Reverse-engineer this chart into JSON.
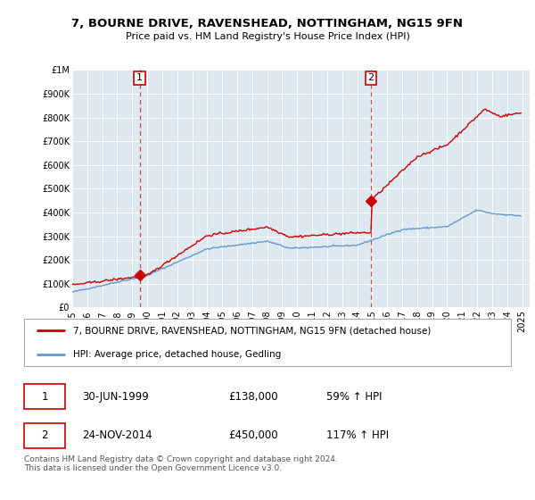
{
  "title": "7, BOURNE DRIVE, RAVENSHEAD, NOTTINGHAM, NG15 9FN",
  "subtitle": "Price paid vs. HM Land Registry's House Price Index (HPI)",
  "ylim": [
    0,
    1000000
  ],
  "yticks": [
    0,
    100000,
    200000,
    300000,
    400000,
    500000,
    600000,
    700000,
    800000,
    900000,
    1000000
  ],
  "ytick_labels": [
    "£0",
    "£100K",
    "£200K",
    "£300K",
    "£400K",
    "£500K",
    "£600K",
    "£700K",
    "£800K",
    "£900K",
    "£1M"
  ],
  "background_color": "#ffffff",
  "plot_bg_color": "#dde8f0",
  "red_line_color": "#cc0000",
  "blue_line_color": "#6699cc",
  "vline_color": "#dd4444",
  "purchase1_x": 1999.5,
  "purchase1_y": 138000,
  "purchase1_label": "30-JUN-1999",
  "purchase1_price": "£138,000",
  "purchase1_hpi": "59% ↑ HPI",
  "purchase2_x": 2014.92,
  "purchase2_y": 450000,
  "purchase2_label": "24-NOV-2014",
  "purchase2_price": "£450,000",
  "purchase2_hpi": "117% ↑ HPI",
  "legend_line1": "7, BOURNE DRIVE, RAVENSHEAD, NOTTINGHAM, NG15 9FN (detached house)",
  "legend_line2": "HPI: Average price, detached house, Gedling",
  "footnote": "Contains HM Land Registry data © Crown copyright and database right 2024.\nThis data is licensed under the Open Government Licence v3.0.",
  "xlim": [
    1995.0,
    2025.5
  ],
  "xtick_years": [
    1995,
    1996,
    1997,
    1998,
    1999,
    2000,
    2001,
    2002,
    2003,
    2004,
    2005,
    2006,
    2007,
    2008,
    2009,
    2010,
    2011,
    2012,
    2013,
    2014,
    2015,
    2016,
    2017,
    2018,
    2019,
    2020,
    2021,
    2022,
    2023,
    2024,
    2025
  ]
}
